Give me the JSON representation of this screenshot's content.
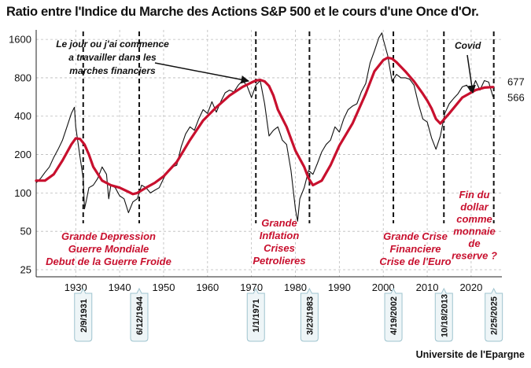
{
  "title": "Ratio entre l'Indice du Marche des Actions S&P 500 et le cours d'une Once d'Or.",
  "source": "Universite de l'Epargne",
  "colors": {
    "ratio": "#111111",
    "ma": "#c8102e",
    "grid": "#bbbbbb",
    "annotation": "#c8102e",
    "bubble": "#eef5f7",
    "bubbleBorder": "#9fc4cf"
  },
  "chart_data": {
    "type": "line",
    "yscale": "log",
    "xlim": [
      1921,
      2027
    ],
    "ylim": [
      22,
      1900
    ],
    "y_ticks": [
      25,
      50,
      100,
      200,
      400,
      800,
      1600
    ],
    "x_ticks": [
      1930,
      1940,
      1950,
      1960,
      1970,
      1980,
      1990,
      2000,
      2010,
      2020
    ],
    "x_tick_labels": [
      "1930",
      "1940",
      "1950",
      "1960",
      "1970",
      "1980",
      "1990",
      "2000",
      "2010",
      "2020"
    ],
    "grid": true,
    "series": [
      {
        "role": "ratio",
        "x": [
          1921,
          1922,
          1923,
          1924,
          1925,
          1926,
          1927,
          1928,
          1929,
          1929.7,
          1930,
          1931,
          1931.7,
          1932,
          1932.5,
          1933,
          1934,
          1935,
          1936,
          1937,
          1937.5,
          1938,
          1939,
          1940,
          1941,
          1942,
          1943,
          1944,
          1945,
          1946,
          1947,
          1948,
          1949,
          1950,
          1951,
          1952,
          1953,
          1954,
          1955,
          1956,
          1957,
          1958,
          1959,
          1960,
          1961,
          1962,
          1963,
          1964,
          1965,
          1966,
          1967,
          1968,
          1969,
          1970,
          1971,
          1972,
          1973,
          1974,
          1975,
          1976,
          1977,
          1978,
          1979,
          1980,
          1980.5,
          1981,
          1982,
          1983,
          1984,
          1985,
          1986,
          1987,
          1988,
          1989,
          1990,
          1991,
          1992,
          1993,
          1994,
          1995,
          1996,
          1997,
          1998,
          1999,
          1999.7,
          2000,
          2001,
          2002,
          2003,
          2004,
          2005,
          2006,
          2007,
          2008,
          2009,
          2010,
          2011,
          2012,
          2013,
          2014,
          2015,
          2016,
          2017,
          2018,
          2019,
          2020,
          2021,
          2022,
          2023,
          2024,
          2025
        ],
        "values": [
          120,
          130,
          145,
          160,
          190,
          220,
          260,
          330,
          420,
          470,
          330,
          190,
          130,
          75,
          90,
          110,
          115,
          130,
          160,
          140,
          90,
          115,
          110,
          95,
          90,
          70,
          85,
          90,
          115,
          110,
          100,
          105,
          110,
          130,
          150,
          160,
          165,
          230,
          290,
          330,
          310,
          380,
          450,
          420,
          520,
          430,
          520,
          610,
          640,
          620,
          700,
          760,
          690,
          560,
          700,
          760,
          500,
          280,
          310,
          330,
          260,
          240,
          150,
          75,
          60,
          90,
          110,
          150,
          140,
          170,
          210,
          240,
          260,
          330,
          300,
          380,
          450,
          480,
          500,
          620,
          720,
          1050,
          1300,
          1650,
          1800,
          1600,
          1200,
          750,
          850,
          800,
          800,
          780,
          700,
          500,
          380,
          360,
          270,
          220,
          280,
          420,
          500,
          550,
          600,
          680,
          700,
          620,
          760,
          640,
          760,
          740,
          566
        ]
      },
      {
        "role": "moving-average",
        "x": [
          1921,
          1923,
          1925,
          1927,
          1929,
          1930,
          1931,
          1932,
          1933,
          1934,
          1936,
          1938,
          1940,
          1942,
          1943,
          1944,
          1946,
          1948,
          1950,
          1953,
          1956,
          1959,
          1962,
          1965,
          1968,
          1970,
          1971,
          1972,
          1973,
          1974,
          1975,
          1976,
          1978,
          1980,
          1982,
          1983,
          1984,
          1986,
          1988,
          1990,
          1993,
          1996,
          1998,
          2000,
          2001,
          2002,
          2003,
          2005,
          2007,
          2009,
          2010,
          2011,
          2012,
          2013,
          2015,
          2018,
          2021,
          2023,
          2025
        ],
        "values": [
          125,
          125,
          140,
          180,
          240,
          268,
          265,
          240,
          200,
          160,
          125,
          115,
          110,
          102,
          98,
          100,
          110,
          120,
          135,
          175,
          260,
          370,
          470,
          580,
          680,
          735,
          760,
          770,
          750,
          690,
          580,
          450,
          330,
          215,
          160,
          130,
          115,
          125,
          165,
          235,
          350,
          600,
          900,
          1100,
          1150,
          1130,
          1060,
          900,
          750,
          600,
          530,
          460,
          380,
          350,
          420,
          560,
          640,
          670,
          677
        ]
      }
    ],
    "end_labels": {
      "ma_value": "677",
      "ratio_value": "566"
    },
    "markers": [
      {
        "x": 1931.7,
        "date": "2/9/1931"
      },
      {
        "x": 1944.45,
        "date": "6/12/1944"
      },
      {
        "x": 1971.0,
        "date": "1/1/1971"
      },
      {
        "x": 1983.2,
        "date": "3/23/1983"
      },
      {
        "x": 2002.3,
        "date": "4/19/2002"
      },
      {
        "x": 2013.8,
        "date": "10/18/2013"
      },
      {
        "x": 2025.15,
        "date": "2/25/2025"
      }
    ],
    "annotations": {
      "depression": [
        "Grande Depression",
        "Guerre Mondiale",
        "Debut de la Guerre Froide"
      ],
      "inflation": [
        "Grande",
        "Inflation",
        "Crises",
        "Petrolieres"
      ],
      "crisis": [
        "Grande Crise",
        "Financiere",
        "Crise de l'Euro"
      ],
      "reserve": [
        "Fin du",
        "dollar",
        "comme",
        "monnaie",
        "de",
        "reserve ?"
      ],
      "career": [
        "Le jour ou j'ai commence",
        "a travailler dans les",
        "marches financiers"
      ],
      "covid": [
        "Covid"
      ]
    }
  }
}
